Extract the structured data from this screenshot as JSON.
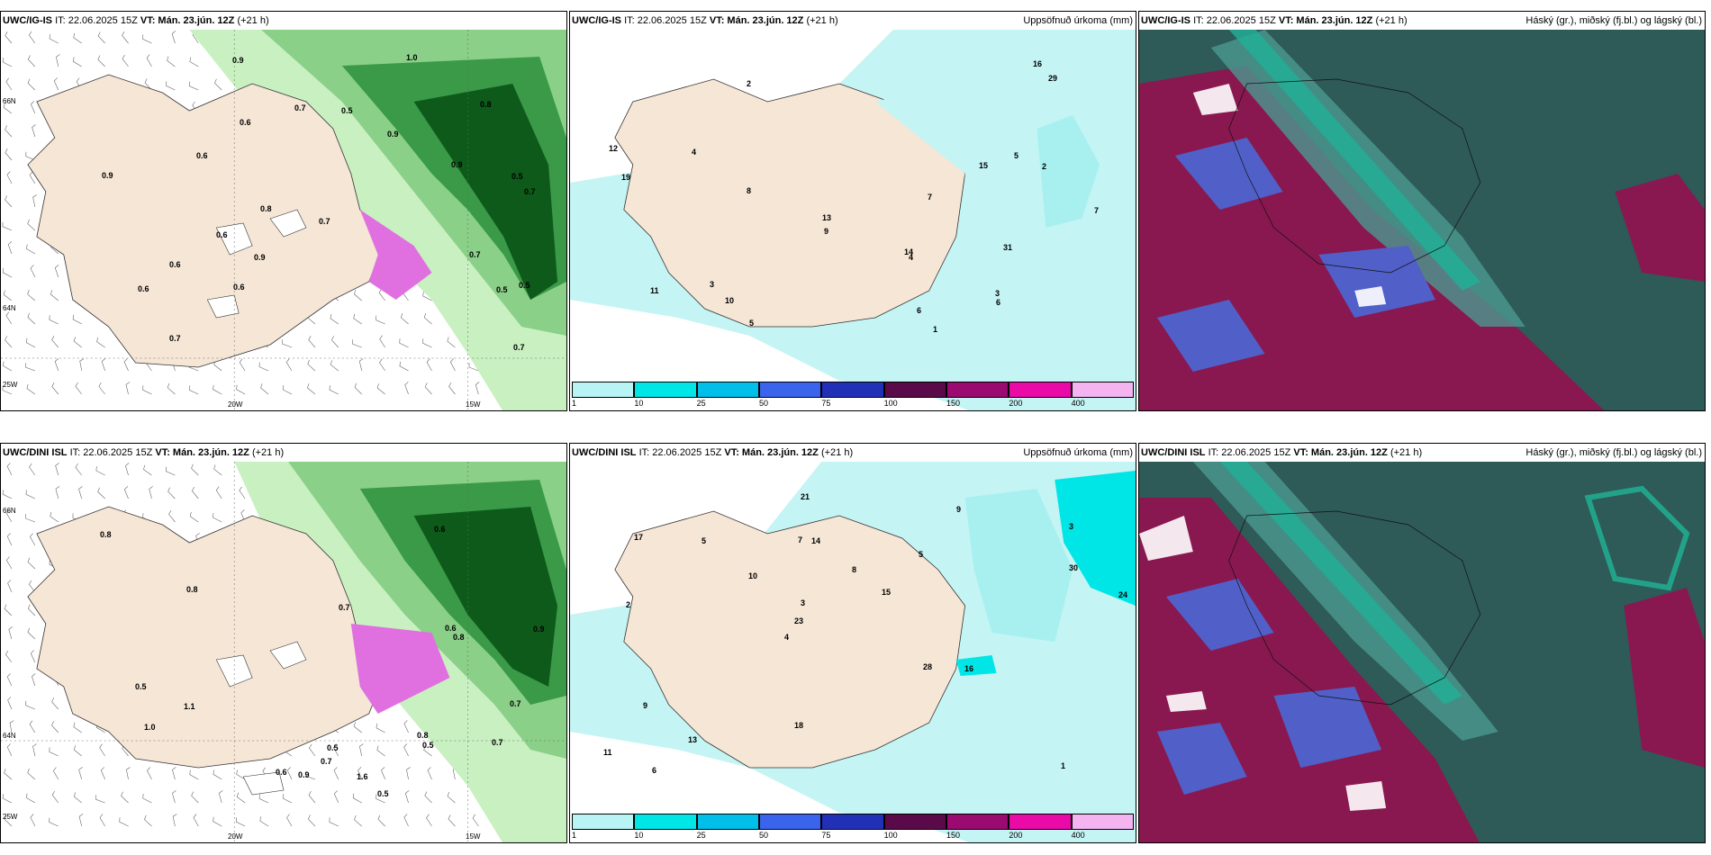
{
  "panels": [
    {
      "id": "p1",
      "model": "UWC/IG-IS",
      "it": "IT: 22.06.2025 15Z",
      "vt": "VT: Mán. 23.jún. 12Z",
      "lead": "(+21 h)",
      "field": "",
      "grid": {
        "lat_top": "66N",
        "lat_mid": "64N",
        "lon_left": "20W",
        "lon_right": "15W",
        "corner": "25W"
      },
      "values": [
        "0.6",
        "0.5",
        "0.9",
        "0.7",
        "0.8",
        "0.5",
        "0.9",
        "1.0",
        "0.5",
        "0.8",
        "0.6",
        "0.7",
        "0.9",
        "0.6",
        "0.6",
        "0.7",
        "0.6",
        "0.9",
        "0.9",
        "0.7",
        "0.7",
        "0.5",
        "0.7",
        "0.6"
      ]
    },
    {
      "id": "p2",
      "model": "UWC/IG-IS",
      "it": "IT: 22.06.2025 15Z",
      "vt": "VT: Mán. 23.jún. 12Z",
      "lead": "(+21 h)",
      "field": "Uppsöfnuð úrkoma (mm)",
      "values": [
        "1",
        "2",
        "3",
        "4",
        "5",
        "6",
        "7",
        "8",
        "9",
        "10",
        "11",
        "12",
        "13",
        "14",
        "15",
        "16",
        "19",
        "29",
        "31",
        "2",
        "3",
        "4",
        "5",
        "6",
        "7"
      ]
    },
    {
      "id": "p3",
      "model": "UWC/IG-IS",
      "it": "IT: 22.06.2025 15Z",
      "vt": "VT: Mán. 23.jún. 12Z",
      "lead": "(+21 h)",
      "field": "Háský (gr.), miðský (fj.bl.) og lágský (bl.)"
    },
    {
      "id": "p4",
      "model": "UWC/DINI ISL",
      "it": "IT: 22.06.2025 15Z",
      "vt": "VT: Mán. 23.jún. 12Z",
      "lead": "(+21 h)",
      "field": "",
      "grid": {
        "lat_top": "66N",
        "lat_mid": "64N",
        "lon_left": "20W",
        "lon_right": "15W",
        "corner": "25W"
      },
      "values": [
        "0.6",
        "0.5",
        "0.7",
        "0.8",
        "0.9",
        "1.0",
        "0.7",
        "0.5",
        "0.6",
        "0.8",
        "1.1",
        "0.7",
        "0.9",
        "0.5",
        "0.6",
        "1.6",
        "0.8",
        "0.5",
        "0.7",
        "0.8"
      ]
    },
    {
      "id": "p5",
      "model": "UWC/DINI ISL",
      "it": "IT: 22.06.2025 15Z",
      "vt": "VT: Mán. 23.jún. 12Z",
      "lead": "(+21 h)",
      "field": "Uppsöfnuð úrkoma (mm)",
      "values": [
        "1",
        "2",
        "3",
        "4",
        "5",
        "6",
        "7",
        "8",
        "9",
        "10",
        "11",
        "13",
        "14",
        "15",
        "16",
        "17",
        "21",
        "24",
        "28",
        "30",
        "23",
        "18",
        "3",
        "5",
        "9"
      ]
    },
    {
      "id": "p6",
      "model": "UWC/DINI ISL",
      "it": "IT: 22.06.2025 15Z",
      "vt": "VT: Mán. 23.jún. 12Z",
      "lead": "(+21 h)",
      "field": "Háský (gr.), miðský (fj.bl.) og lágský (bl.)"
    }
  ],
  "colorbar": {
    "labels": [
      "1",
      "10",
      "25",
      "50",
      "75",
      "100",
      "150",
      "200",
      "400"
    ],
    "colors": [
      "#b8f4f4",
      "#00e5e5",
      "#00bfe8",
      "#3a64ec",
      "#2230b8",
      "#5a0a48",
      "#9a0a70",
      "#ea0aa8",
      "#f4b4f0"
    ]
  },
  "colors": {
    "land": "#f5e6d6",
    "precip_light": "#c4f4f4",
    "green1": "#c8f0c0",
    "green2": "#8ad088",
    "green3": "#3a9a48",
    "green4": "#0e5a1a",
    "magenta": "#e070e0",
    "cloud_dark": "#2e5a58",
    "cloud_red": "#8a1850",
    "cloud_blue": "#5060c8",
    "cloud_teal": "#20b098"
  }
}
